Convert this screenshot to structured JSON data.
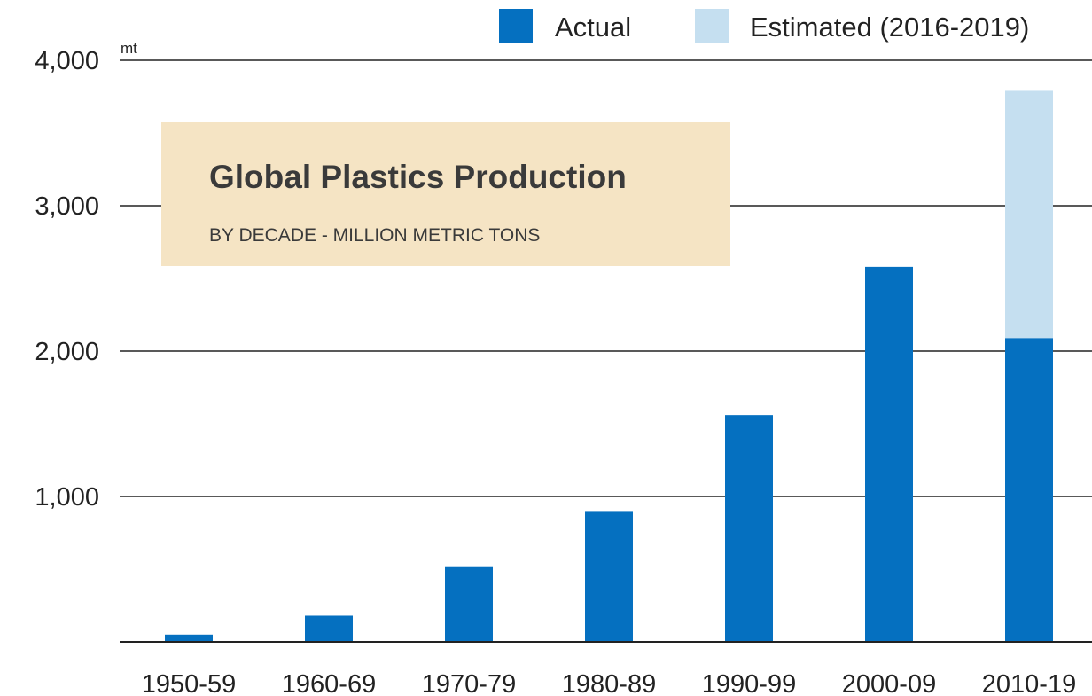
{
  "chart_data": {
    "type": "bar",
    "stacked": true,
    "title": "Global Plastics Production",
    "subtitle": "BY DECADE - MILLION METRIC TONS",
    "ylabel": "mt",
    "ylim": [
      0,
      4000
    ],
    "yticks": [
      1000,
      2000,
      3000,
      4000
    ],
    "ytick_labels": [
      "1,000",
      "2,000",
      "3,000",
      "4,000"
    ],
    "grid": true,
    "legend_position": "top-right",
    "categories": [
      "1950-59",
      "1960-69",
      "1970-79",
      "1980-89",
      "1990-99",
      "2000-09",
      "2010-19"
    ],
    "series": [
      {
        "name": "Actual",
        "color": "#0570c0",
        "values": [
          50,
          180,
          520,
          900,
          1560,
          2580,
          2090
        ]
      },
      {
        "name": "Estimated (2016-2019)",
        "color": "#c5dff0",
        "values": [
          0,
          0,
          0,
          0,
          0,
          0,
          1700
        ]
      }
    ],
    "title_box_color": "#f5e4c4"
  }
}
